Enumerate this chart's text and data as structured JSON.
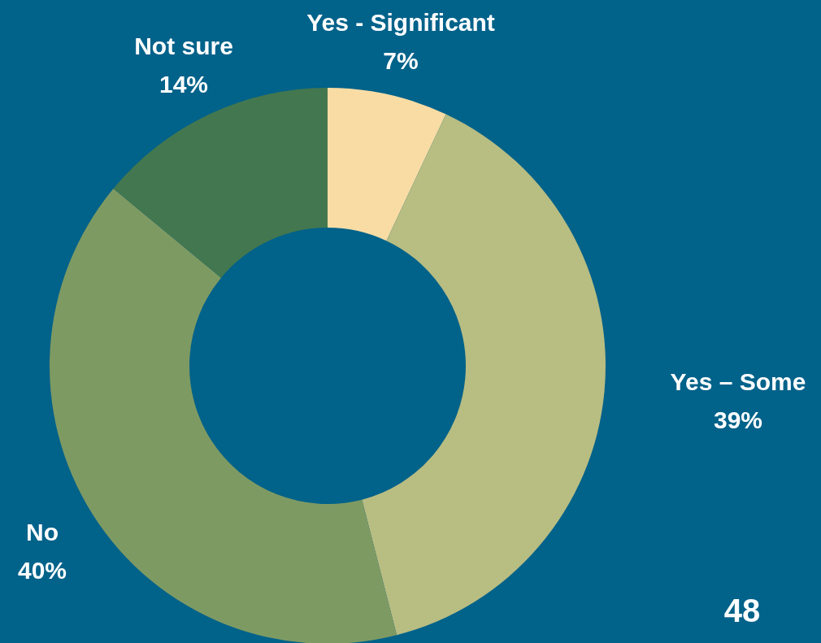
{
  "chart_data": {
    "type": "donut",
    "categories": [
      "Yes - Significant",
      "Yes – Some",
      "No",
      "Not sure"
    ],
    "values": [
      7,
      39,
      40,
      14
    ],
    "colors": [
      "#f8dca4",
      "#b8bd82",
      "#7e9a63",
      "#43774f"
    ],
    "value_labels": [
      "7%",
      "39%",
      "40%",
      "14%"
    ],
    "annotations": [
      "48"
    ],
    "legend": false
  }
}
